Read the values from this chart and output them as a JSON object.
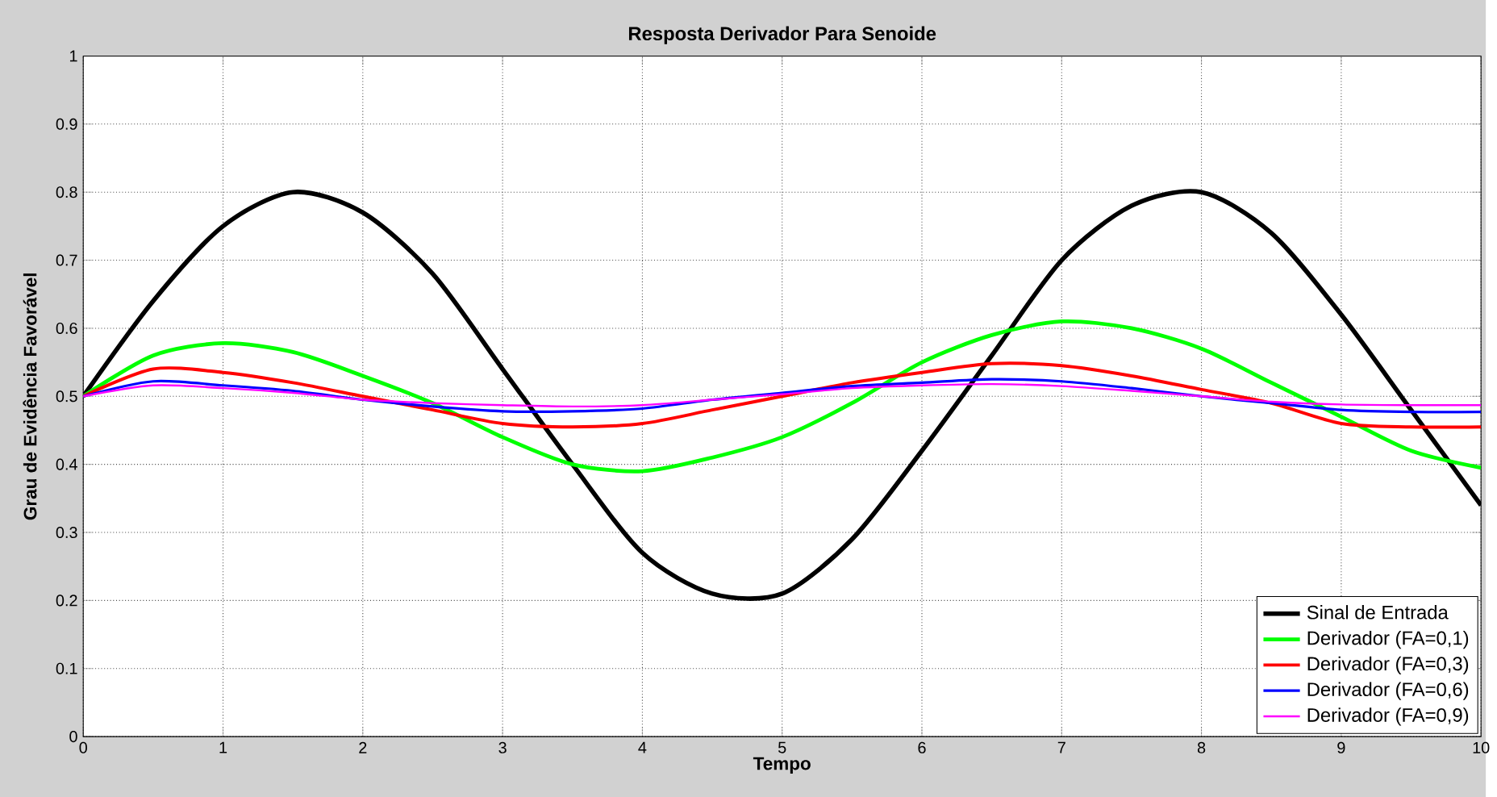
{
  "chart_data": {
    "type": "line",
    "title": "Resposta Derivador Para Senoide",
    "xlabel": "Tempo",
    "ylabel": "Grau de Evidência Favorável",
    "x": [
      0,
      0.5,
      1,
      1.5,
      2,
      2.5,
      3,
      3.5,
      4,
      4.5,
      5,
      5.5,
      6,
      6.5,
      7,
      7.5,
      8,
      8.5,
      9,
      9.5,
      10
    ],
    "series": [
      {
        "name": "Sinal de Entrada",
        "color": "#000000",
        "values": [
          0.5,
          0.64,
          0.75,
          0.8,
          0.77,
          0.68,
          0.54,
          0.4,
          0.27,
          0.21,
          0.21,
          0.29,
          0.42,
          0.56,
          0.7,
          0.78,
          0.8,
          0.74,
          0.62,
          0.48,
          0.34
        ]
      },
      {
        "name": "Derivador (FA=0,1)",
        "color": "#00ff00",
        "values": [
          0.5,
          0.56,
          0.578,
          0.565,
          0.53,
          0.49,
          0.44,
          0.4,
          0.39,
          0.41,
          0.44,
          0.49,
          0.55,
          0.59,
          0.61,
          0.6,
          0.57,
          0.52,
          0.47,
          0.42,
          0.395
        ]
      },
      {
        "name": "Derivador (FA=0,3)",
        "color": "#ff0000",
        "values": [
          0.5,
          0.54,
          0.535,
          0.52,
          0.5,
          0.48,
          0.46,
          0.455,
          0.46,
          0.48,
          0.5,
          0.52,
          0.535,
          0.548,
          0.545,
          0.53,
          0.51,
          0.49,
          0.46,
          0.455,
          0.455
        ]
      },
      {
        "name": "Derivador (FA=0,6)",
        "color": "#0000ff",
        "values": [
          0.5,
          0.522,
          0.516,
          0.508,
          0.495,
          0.485,
          0.478,
          0.478,
          0.482,
          0.495,
          0.505,
          0.515,
          0.52,
          0.525,
          0.522,
          0.512,
          0.5,
          0.49,
          0.48,
          0.477,
          0.477
        ]
      },
      {
        "name": "Derivador (FA=0,9)",
        "color": "#ff00ff",
        "values": [
          0.5,
          0.516,
          0.512,
          0.505,
          0.495,
          0.49,
          0.487,
          0.485,
          0.487,
          0.495,
          0.503,
          0.512,
          0.516,
          0.518,
          0.515,
          0.508,
          0.5,
          0.492,
          0.488,
          0.487,
          0.487
        ]
      }
    ],
    "xlim": [
      0,
      10
    ],
    "ylim": [
      0,
      1
    ],
    "xticks": [
      0,
      1,
      2,
      3,
      4,
      5,
      6,
      7,
      8,
      9,
      10
    ],
    "yticks": [
      0,
      0.1,
      0.2,
      0.3,
      0.4,
      0.5,
      0.6,
      0.7,
      0.8,
      0.9,
      1
    ],
    "grid": true,
    "legend": "bottom right",
    "line_style": "solid"
  }
}
